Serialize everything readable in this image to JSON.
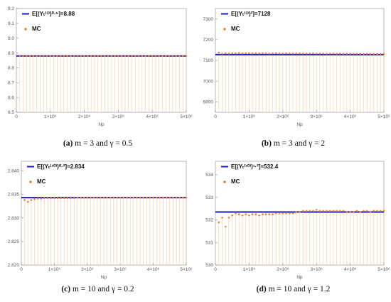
{
  "chart_data": [
    {
      "type": "scatter",
      "caption": {
        "label": "(a)",
        "text": "m = 3 and γ = 0.5"
      },
      "xlabel": "Np",
      "xticks": [
        "0",
        "1×10⁶",
        "2×10⁶",
        "3×10⁶",
        "4×10⁶",
        "5×10⁶"
      ],
      "xlim": [
        0,
        5000000
      ],
      "ylim": [
        8.5,
        9.2
      ],
      "yticks": [
        "8.5",
        "8.6",
        "8.7",
        "8.8",
        "8.9",
        "9.0",
        "9.1",
        "9.2"
      ],
      "series": [
        {
          "name": "E[(Yₜ⁽³⁾)⁰·⁵]=8.88",
          "kind": "line",
          "value": 8.88
        },
        {
          "name": "MC",
          "kind": "points",
          "x_start": 100000,
          "x_step": 100000,
          "values": [
            8.881,
            8.881,
            8.881,
            8.88,
            8.88,
            8.88,
            8.88,
            8.88,
            8.88,
            8.88,
            8.88,
            8.88,
            8.88,
            8.88,
            8.88,
            8.88,
            8.88,
            8.88,
            8.88,
            8.88,
            8.88,
            8.88,
            8.88,
            8.88,
            8.88,
            8.88,
            8.88,
            8.88,
            8.88,
            8.88,
            8.88,
            8.88,
            8.88,
            8.88,
            8.88,
            8.88,
            8.88,
            8.88,
            8.88,
            8.88,
            8.88,
            8.88,
            8.88,
            8.88,
            8.88,
            8.88,
            8.88,
            8.88,
            8.88,
            8.88
          ]
        }
      ],
      "colors": {
        "line": "#1a1acc",
        "points": "#f08020",
        "drop": "#f7c9a0"
      }
    },
    {
      "type": "scatter",
      "caption": {
        "label": "(b)",
        "text": "m = 3 and γ = 2"
      },
      "xlabel": "Np",
      "xticks": [
        "0",
        "1×10⁶",
        "2×10⁶",
        "3×10⁶",
        "4×10⁶",
        "5×10⁶"
      ],
      "xlim": [
        0,
        5000000
      ],
      "ylim": [
        6850,
        7350
      ],
      "yticks": [
        "6900",
        "7000",
        "7100",
        "7200",
        "7300"
      ],
      "series": [
        {
          "name": "E[(Yₜ⁽³⁾)²]=7128",
          "kind": "line",
          "value": 7128
        },
        {
          "name": "MC",
          "kind": "points",
          "x_start": 100000,
          "x_step": 100000,
          "values": [
            7138,
            7132,
            7134,
            7133,
            7135,
            7134,
            7136,
            7134,
            7135,
            7135,
            7134,
            7135,
            7134,
            7135,
            7134,
            7133,
            7134,
            7135,
            7134,
            7133,
            7134,
            7134,
            7133,
            7134,
            7134,
            7133,
            7133,
            7133,
            7134,
            7133,
            7133,
            7133,
            7132,
            7133,
            7133,
            7132,
            7133,
            7132,
            7132,
            7132,
            7132,
            7132,
            7132,
            7131,
            7132,
            7131,
            7131,
            7131,
            7131,
            7131
          ]
        }
      ],
      "colors": {
        "line": "#1a1acc",
        "points": "#f08020",
        "drop": "#f7c9a0"
      }
    },
    {
      "type": "scatter",
      "caption": {
        "label": "(c)",
        "text": "m = 10 and γ = 0.2"
      },
      "xlabel": "Np",
      "xticks": [
        "0",
        "1×10⁶",
        "2×10⁶",
        "3×10⁶",
        "4×10⁶",
        "5×10⁶"
      ],
      "xlim": [
        0,
        5000000
      ],
      "ylim": [
        2.82,
        2.842
      ],
      "yticks": [
        "2.820",
        "2.825",
        "2.830",
        "2.835",
        "2.840"
      ],
      "series": [
        {
          "name": "E[(Yₜ⁽¹⁰⁾)⁰·²]=2.834",
          "kind": "line",
          "value": 2.8343
        },
        {
          "name": "MC",
          "kind": "points",
          "x_start": 100000,
          "x_step": 100000,
          "values": [
            2.8338,
            2.8334,
            2.8338,
            2.834,
            2.8341,
            2.8341,
            2.8342,
            2.8342,
            2.8342,
            2.8342,
            2.8342,
            2.8342,
            2.8342,
            2.8342,
            2.8342,
            2.8342,
            2.8343,
            2.8343,
            2.8343,
            2.8343,
            2.8343,
            2.8343,
            2.8343,
            2.8343,
            2.8343,
            2.8343,
            2.8343,
            2.8343,
            2.8343,
            2.8343,
            2.8343,
            2.8343,
            2.8343,
            2.8343,
            2.8343,
            2.8343,
            2.8343,
            2.8343,
            2.8343,
            2.8343,
            2.8343,
            2.8343,
            2.8343,
            2.8343,
            2.8343,
            2.8343,
            2.8343,
            2.8343,
            2.8343,
            2.8343
          ]
        }
      ],
      "colors": {
        "line": "#1a1acc",
        "points": "#f08020",
        "drop": "#f7c9a0"
      }
    },
    {
      "type": "scatter",
      "caption": {
        "label": "(d)",
        "text": "m = 10 and γ = 1.2"
      },
      "xlabel": "Np",
      "xticks": [
        "0",
        "1×10⁶",
        "2×10⁶",
        "3×10⁶",
        "4×10⁶",
        "5×10⁶"
      ],
      "xlim": [
        0,
        5000000
      ],
      "ylim": [
        530,
        534.6
      ],
      "yticks": [
        "530",
        "531",
        "532",
        "533",
        "534"
      ],
      "series": [
        {
          "name": "E[(Yₜ⁽¹⁰⁾)¹·²]=532.4",
          "kind": "line",
          "value": 532.35
        },
        {
          "name": "MC",
          "kind": "points",
          "x_start": 100000,
          "x_step": 100000,
          "values": [
            531.9,
            532.1,
            531.7,
            532.1,
            532.2,
            532.3,
            532.25,
            532.2,
            532.25,
            532.2,
            532.25,
            532.25,
            532.2,
            532.25,
            532.25,
            532.25,
            532.25,
            532.3,
            532.3,
            532.3,
            532.3,
            532.3,
            532.3,
            532.35,
            532.35,
            532.4,
            532.4,
            532.4,
            532.4,
            532.45,
            532.4,
            532.4,
            532.4,
            532.4,
            532.4,
            532.4,
            532.4,
            532.4,
            532.35,
            532.35,
            532.35,
            532.4,
            532.35,
            532.4,
            532.4,
            532.35,
            532.4,
            532.4,
            532.4,
            532.4
          ]
        }
      ],
      "colors": {
        "line": "#1a1acc",
        "points": "#f08020",
        "drop": "#f7c9a0"
      }
    }
  ]
}
